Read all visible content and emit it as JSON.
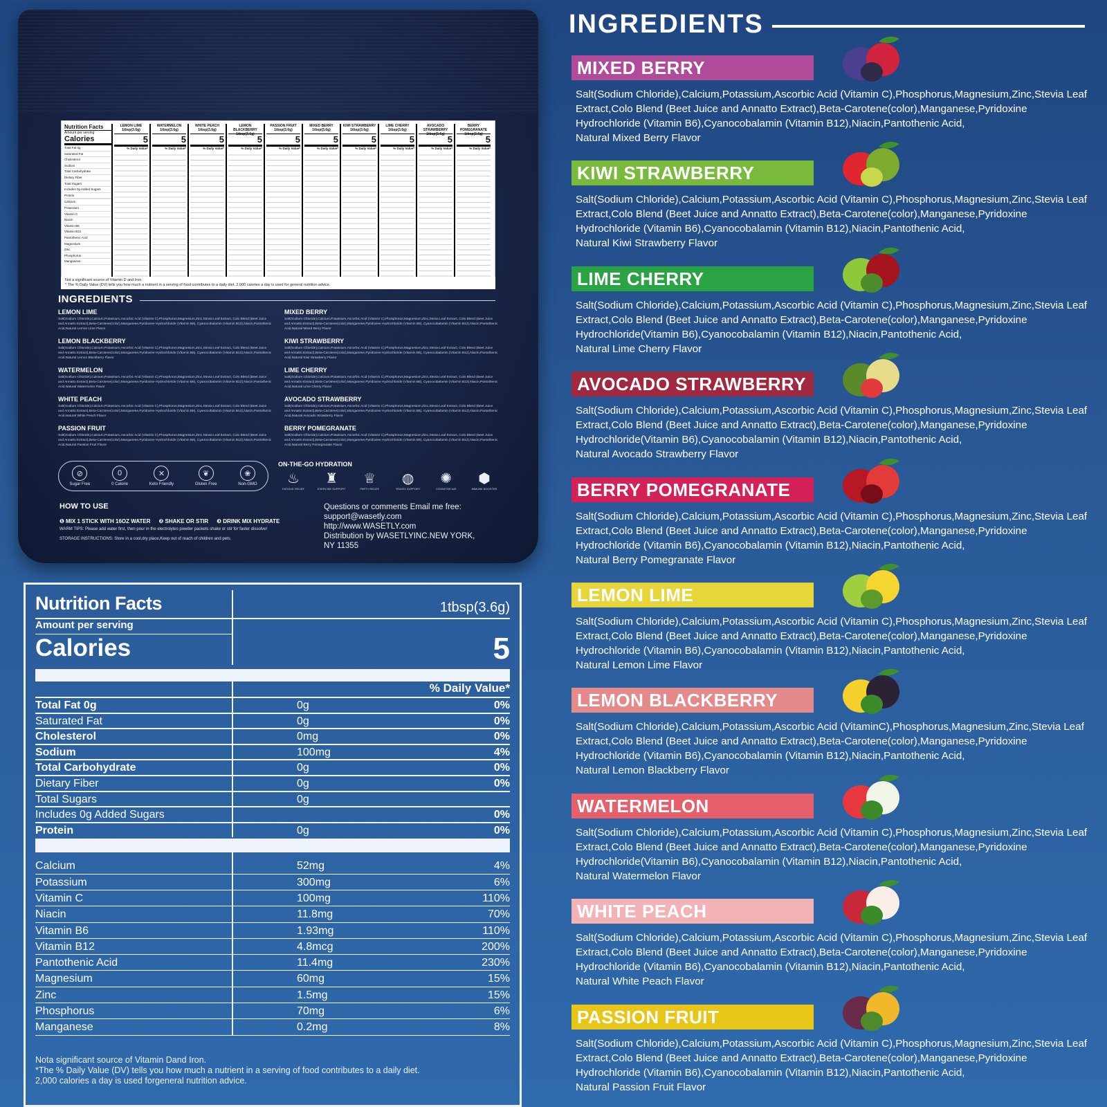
{
  "package": {
    "mini_table": {
      "title": "Nutrition Facts",
      "amount": "Amount per serving",
      "calories": "Calories",
      "row_labels": [
        "Total Fat 0g",
        "Saturated Fat",
        "Cholesterol",
        "Sodium",
        "Total Carbohydrate",
        "Dietary Fiber",
        "Total Sugars",
        "Includes 0g Added Sugars",
        "Protein",
        "",
        "Calcium",
        "Potassium",
        "Vitamin C",
        "Niacin",
        "Vitamin B6",
        "Vitamin B12",
        "Pantothenic Acid",
        "Magnesium",
        "Zinc",
        "Phosphorus",
        "Manganese"
      ],
      "columns": [
        {
          "name": "LEMON LIME",
          "serving": "1tbsp(3.6g)",
          "calories": "5"
        },
        {
          "name": "WATERMELON",
          "serving": "1tbsp(3.6g)",
          "calories": "5"
        },
        {
          "name": "WHITE PEACH",
          "serving": "1tbsp(3.6g)",
          "calories": "5"
        },
        {
          "name": "LEMON BLACKBERRY",
          "serving": "1tbsp(3.6g)",
          "calories": "5"
        },
        {
          "name": "PASSION FRUIT",
          "serving": "1tbsp(3.6g)",
          "calories": "5"
        },
        {
          "name": "MIXED BERRY",
          "serving": "1tbsp(3.6g)",
          "calories": "5"
        },
        {
          "name": "KIWI STRAWBERRY",
          "serving": "1tbsp(3.6g)",
          "calories": "5"
        },
        {
          "name": "LIME CHERRY",
          "serving": "1tbsp(3.6g)",
          "calories": "5"
        },
        {
          "name": "AVOCADO STRAWBERRY",
          "serving": "1tbsp(3.6g)",
          "calories": "5"
        },
        {
          "name": "BERRY POMEGRANATE",
          "serving": "1tbsp(3.6g)",
          "calories": "5"
        }
      ],
      "dv_label": "% Daily Value*",
      "footnote_1": "Not a significant source of Vitamin D and Iron.",
      "footnote_2": "* The % Daily Value (DV) tells you how much a nutrient in a serving of food contributes to a daily diet. 2,000 calories a day is used for general nutrition advice."
    },
    "ingredients_title": "INGREDIENTS",
    "ingredients_left": [
      {
        "name": "LEMON LIME",
        "text": "Salt(Sodium Chloride),Calcium,Potassium,Ascorbic Acid (Vitamin C),Phosphorus,Magnesium,Zinc,Stevia Leaf Extract, Colo Blend (Beet Juice and Annatto Extract),Beta-Carotene(color),Manganese,Pyridoxine Hydrochloride (Vitamin B6), Cyanocobalamin (Vitamin B12),Niacin,Pantothenic Acid,Natural Lemon Lime Flavor"
      },
      {
        "name": "LEMON BLACKBERRY",
        "text": "Salt(Sodium Chloride),Calcium,Potassium,Ascorbic Acid (Vitamin C),Phosphorus,Magnesium,Zinc,Stevia Leaf Extract, Colo Blend (Beet Juice and Annatto Extract),Beta-Carotene(color),Manganese,Pyridoxine Hydrochloride (Vitamin B6), Cyanocobalamin (Vitamin B12),Niacin,Pantothenic Acid,Natural Lemon Blackberry Flavor"
      },
      {
        "name": "WATERMELON",
        "text": "Salt(Sodium Chloride),Calcium,Potassium,Ascorbic Acid (Vitamin C),Phosphorus,Magnesium,Zinc,Stevia Leaf Extract, Colo Blend (Beet Juice and Annatto Extract),Beta-Carotene(color),Manganese,Pyridoxine Hydrochloride (Vitamin B6), Cyanocobalamin (Vitamin B12),Niacin,Pantothenic Acid,Natural Watermelon Flavor"
      },
      {
        "name": "WHITE PEACH",
        "text": "Salt(Sodium Chloride),Calcium,Potassium,Ascorbic Acid (Vitamin C),Phosphorus,Magnesium,Zinc,Stevia Leaf Extract, Colo Blend (Beet Juice and Annatto Extract),Beta-Carotene(color),Manganese,Pyridoxine Hydrochloride (Vitamin B6), Cyanocobalamin (Vitamin B12),Niacin,Pantothenic Acid,Natural White Peach Flavor"
      },
      {
        "name": "PASSION FRUIT",
        "text": "Salt(Sodium Chloride),Calcium,Potassium,Ascorbic Acid (Vitamin C),Phosphorus,Magnesium,Zinc,Stevia Leaf Extract, Colo Blend (Beet Juice and Annatto Extract),Beta-Carotene(color),Manganese,Pyridoxine Hydrochloride (Vitamin B6), Cyanocobalamin (Vitamin B12),Niacin,Pantothenic Acid,Natural Passion Fruit Flavor"
      }
    ],
    "ingredients_right": [
      {
        "name": "MIXED BERRY",
        "text": "Salt(Sodium Chloride),Calcium,Potassium,Ascorbic Acid (Vitamin C),Phosphorus,Magnesium,Zinc,Stevia Leaf Extract, Colo Blend (Beet Juice and Annatto Extract),Beta-Carotene(color),Manganese,Pyridoxine Hydrochloride (Vitamin B6), Cyanocobalamin (Vitamin B12),Niacin,Pantothenic Acid,Natural Mixed Berry Flavor"
      },
      {
        "name": "KIWI STRAWBERRY",
        "text": "Salt(Sodium Chloride),Calcium,Potassium,Ascorbic Acid (Vitamin C),Phosphorus,Magnesium,Zinc,Stevia Leaf Extract, Colo Blend (Beet Juice and Annatto Extract),Beta-Carotene(color),Manganese,Pyridoxine Hydrochloride (Vitamin B6), Cyanocobalamin (Vitamin B12),Niacin,Pantothenic Acid,Natural Kiwi Strawberry Flavor"
      },
      {
        "name": "LIME CHERRY",
        "text": "Salt(Sodium Chloride),Calcium,Potassium,Ascorbic Acid (Vitamin C),Phosphorus,Magnesium,Zinc,Stevia Leaf Extract, Colo Blend (Beet Juice and Annatto Extract),Beta-Carotene(color),Manganese,Pyridoxine Hydrochloride (Vitamin B6), Cyanocobalamin (Vitamin B12),Niacin,Pantothenic Acid,Natural Lime Cherry Flavor"
      },
      {
        "name": "AVOCADO STRAWBERRY",
        "text": "Salt(Sodium Chloride),Calcium,Potassium,Ascorbic Acid (Vitamin C),Phosphorus,Magnesium,Zinc,Stevia Leaf Extract, Colo Blend (Beet Juice and Annatto Extract),Beta-Carotene(color),Manganese,Pyridoxine Hydrochloride (Vitamin B6), Cyanocobalamin (Vitamin B12),Niacin,Pantothenic Acid,Natural Avocado Strawberry Flavor"
      },
      {
        "name": "BERRY POMEGRANATE",
        "text": "Salt(Sodium Chloride),Calcium,Potassium,Ascorbic Acid (Vitamin C),Phosphorus,Magnesium,Zinc,Stevia Leaf Extract, Colo Blend (Beet Juice and Annatto Extract),Beta-Carotene(color),Manganese,Pyridoxine Hydrochloride (Vitamin B6), Cyanocobalamin (Vitamin B12),Niacin,Pantothenic Acid,Natural Berry Pomegranate Flavor"
      }
    ],
    "badges": [
      {
        "label": "Sugar Free",
        "icon": "sugar-free-icon",
        "glyph": "⊘"
      },
      {
        "label": "0 Calorie",
        "icon": "zero-calorie-icon",
        "glyph": "0"
      },
      {
        "label": "Keto Friendly",
        "icon": "keto-icon",
        "glyph": "✕"
      },
      {
        "label": "Gluten Free",
        "icon": "gluten-free-icon",
        "glyph": "❦"
      },
      {
        "label": "Non-GMO",
        "icon": "non-gmo-icon",
        "glyph": "❀"
      }
    ],
    "otg_title": "ON-THE-GO HYDRATION",
    "otg_items": [
      {
        "label": "FATIGUE RELIEF",
        "icon": "fatigue-relief-icon",
        "glyph": "♨"
      },
      {
        "label": "EXERCISE SUPPORT",
        "icon": "exercise-icon",
        "glyph": "♜"
      },
      {
        "label": "PARTY RELIEF",
        "icon": "party-icon",
        "glyph": "♕"
      },
      {
        "label": "TRAVEL SUPPORT",
        "icon": "travel-icon",
        "glyph": "◍"
      },
      {
        "label": "COGNITIVE AID",
        "icon": "cognitive-icon",
        "glyph": "✺"
      },
      {
        "label": "IMMUNE BOOSTER",
        "icon": "immune-icon",
        "glyph": "⬢"
      }
    ],
    "how_to_use_title": "HOW TO USE",
    "steps": [
      "❶ MIX 1 STICK WITH 16OZ WATER",
      "❷ SHAKE OR STIR",
      "❸ DRINK MIX HYDRATE"
    ],
    "warm_tips": "WARM TIPS: Please add water first, then pour in the electrolytes powder packets shake or stir for faster dissolve!",
    "storage": "STORAGE INSTRUCTIONS: Store in a cool,dry place,Keep out of reach of children and pets.",
    "contact": [
      "Questions or comments Email me free:",
      "support@wasetly.com",
      "http://www.WASETLY.com",
      "Distribution by WASETLYINC.NEW YORK,",
      "NY 11355"
    ]
  },
  "nutrition": {
    "title": "Nutrition Facts",
    "serving": "1tbsp(3.6g)",
    "amount_per_serving": "Amount per serving",
    "calories_label": "Calories",
    "calories_value": "5",
    "dv_header": "% Daily Value*",
    "rows": [
      {
        "label": "Total Fat 0g",
        "amount": "0g",
        "dv": "0%",
        "bold": true
      },
      {
        "label": "Saturated Fat",
        "amount": "0g",
        "dv": "0%",
        "bold": false
      },
      {
        "label": "Cholesterol",
        "amount": "0mg",
        "dv": "0%",
        "bold": true
      },
      {
        "label": "Sodium",
        "amount": "100mg",
        "dv": "4%",
        "bold": true
      },
      {
        "label": "Total Carbohydrate",
        "amount": "0g",
        "dv": "0%",
        "bold": true
      },
      {
        "label": "Dietary Fiber",
        "amount": "0g",
        "dv": "0%",
        "bold": false
      },
      {
        "label": "Total Sugars",
        "amount": "0g",
        "dv": "",
        "bold": false
      },
      {
        "label": "Includes 0g Added Sugars",
        "amount": "",
        "dv": "0%",
        "bold": false
      },
      {
        "label": "Protein",
        "amount": "0g",
        "dv": "0%",
        "bold": true
      }
    ],
    "vitamins": [
      {
        "label": "Calcium",
        "amount": "52mg",
        "dv": "4%"
      },
      {
        "label": "Potassium",
        "amount": "300mg",
        "dv": "6%"
      },
      {
        "label": "Vitamin C",
        "amount": "100mg",
        "dv": "110%"
      },
      {
        "label": "Niacin",
        "amount": "11.8mg",
        "dv": "70%"
      },
      {
        "label": "Vitamin B6",
        "amount": "1.93mg",
        "dv": "110%"
      },
      {
        "label": "Vitamin B12",
        "amount": "4.8mcg",
        "dv": "200%"
      },
      {
        "label": "Pantothenic Acid",
        "amount": "11.4mg",
        "dv": "230%"
      },
      {
        "label": "Magnesium",
        "amount": "60mg",
        "dv": "15%"
      },
      {
        "label": "Zinc",
        "amount": "1.5mg",
        "dv": "15%"
      },
      {
        "label": "Phosphorus",
        "amount": "70mg",
        "dv": "6%"
      },
      {
        "label": "Manganese",
        "amount": "0.2mg",
        "dv": "8%"
      }
    ],
    "footnote": [
      "Nota significant source of Vitamin Dand Iron.",
      "*The % Daily Value (DV) tells you how much a nutrient in a serving of food contributes to a daily diet.",
      " 2,000 calories a day is used forgeneral nutrition advice."
    ]
  },
  "ingredients": {
    "title": "INGREDIENTS",
    "flavors": [
      {
        "name": "MIXED BERRY",
        "color": "#b04b9a",
        "icon": "mixed-berry-icon",
        "fruit_colors": [
          "#4c3f8f",
          "#d1233d",
          "#2f2a4a"
        ],
        "text": "Salt(Sodium Chloride),Calcium,Potassium,Ascorbic Acid (Vitamin C),Phosphorus,Magnesium,Zinc,Stevia Leaf Extract,Colo Blend (Beet Juice and Annatto Extract),Beta-Carotene(color),Manganese,Pyridoxine Hydrochloride (Vitamin B6),Cyanocobalamin (Vitamin B12),Niacin,Pantothenic Acid,",
        "flavor": "Natural Mixed Berry Flavor"
      },
      {
        "name": "KIWI STRAWBERRY",
        "color": "#79b93c",
        "icon": "kiwi-strawberry-icon",
        "fruit_colors": [
          "#e0262e",
          "#7cab2f",
          "#c7d94a"
        ],
        "text": "Salt(Sodium Chloride),Calcium,Potassium,Ascorbic Acid (Vitamin C),Phosphorus,Magnesium,Zinc,Stevia Leaf Extract,Colo Blend (Beet Juice and Annatto Extract),Beta-Carotene(color),Manganese,Pyridoxine Hydrochloride (Vitamin B6),Cyanocobalamin (Vitamin B12),Niacin,Pantothenic Acid,",
        "flavor": "Natural Kiwi Strawberry Flavor"
      },
      {
        "name": "LIME CHERRY",
        "color": "#2aa345",
        "icon": "lime-cherry-icon",
        "fruit_colors": [
          "#8fc93a",
          "#a6141e",
          "#4e8b2a"
        ],
        "text": "Salt(Sodium Chloride),Calcium,Potassium,Ascorbic Acid (Vitamin C),Phosphorus,Magnesium,Zinc,Stevia Leaf Extract,Colo Blend (Beet Juice and Annatto Extract),Beta-Carotene(color),Manganese,Pyridoxine Hydrochloride(Vitamin B6),Cyanocobalamin (Vitamin B12),Niacin,Pantothenic Acid,",
        "flavor": "Natural Lime Cherry Flavor"
      },
      {
        "name": "AVOCADO STRAWBERRY",
        "color": "#a0293f",
        "icon": "avocado-strawberry-icon",
        "fruit_colors": [
          "#5a8a2a",
          "#e6dc8a",
          "#e23a3a"
        ],
        "text": "Salt(Sodium Chloride),Calcium,Potassium,Ascorbic Acid (Vitamin C),Phosphorus,Magnesium,Zinc,Stevia Leaf Extract,Colo Blend (Beet Juice and Annatto Extract),Beta-Carotene(color),Manganese,Pyridoxine Hydrochloride(Vitamin B6),Cyanocobalamin (Vitamin B12),Niacin,Pantothenic Acid,",
        "flavor": "Natural Avocado Strawberry Flavor"
      },
      {
        "name": "BERRY POMEGRANATE",
        "color": "#d42158",
        "icon": "berry-pomegranate-icon",
        "fruit_colors": [
          "#b81724",
          "#e33a3a",
          "#7a0e18"
        ],
        "text": "Salt(Sodium Chloride),Calcium,Potassium,Ascorbic Acid (Vitamin C),Phosphorus,Magnesium,Zinc,Stevia Leaf Extract,Colo Blend (Beet Juice and Annatto Extract),Beta-Carotene(color),Manganese,Pyridoxine Hydrochloride (Vitamin B6),Cyanocobalamin (Vitamin B12),Niacin,Pantothenic Acid,",
        "flavor": "Natural Berry Pomegranate Flavor"
      },
      {
        "name": "LEMON LIME",
        "color": "#e7d63a",
        "icon": "lemon-lime-icon",
        "fruit_colors": [
          "#9fcf3f",
          "#f5d630",
          "#5b9a2b"
        ],
        "text": "Salt(Sodium Chloride),Calcium,Potassium,Ascorbic Acid (Vitamin C),Phosphorus,Magnesium,Zinc,Stevia Leaf Extract,Colo Blend (Beet Juice and Annatto Extract),Beta-Carotene(color),Manganese,Pyridoxine Hydrochloride (Vitamin B6),Cyanocobalamin (Vitamin B12),Niacin,Pantothenic Acid,",
        "flavor": "Natural Lemon Lime Flavor"
      },
      {
        "name": "LEMON BLACKBERRY",
        "color": "#e48a8a",
        "icon": "lemon-blackberry-icon",
        "fruit_colors": [
          "#f4cf2e",
          "#2b2236",
          "#3d8a2a"
        ],
        "text": "Salt(Sodium Chloride),Calcium,Potassium,Ascorbic Acid (VitaminC),Phosphorus,Magnesium,Zinc,Stevia Leaf Extract,Colo Blend (Beet Juice and Annatto Extract),Beta-Carotene(color),Manganese,Pyridoxine Hydrochloride (Vitamin B6),Cyanocobalamin (Vitamin B12),Niacin,Pantothenic Acid,",
        "flavor": "Natural Lemon Blackberry Flavor"
      },
      {
        "name": "WATERMELON",
        "color": "#e5606a",
        "icon": "watermelon-icon",
        "fruit_colors": [
          "#e8383f",
          "#f1f5e8",
          "#3b8a2a"
        ],
        "text": "Salt(Sodium Chloride),Calcium,Potassium,Ascorbic Acid (Vitamin C),Phosphorus,Magnesium,Zinc,Stevia Leaf Extract,Colo Blend (Beet Juice and Annatto Extract),Beta-Carotene(color),Manganese,Pyridoxine Hydrochloride(Vitamin B6),Cyanocobalamin (Vitamin B12),Niacin,Pantothenic Acid,",
        "flavor": "Natural Watermelon Flavor"
      },
      {
        "name": "WHITE PEACH",
        "color": "#f2b2b6",
        "icon": "white-peach-icon",
        "fruit_colors": [
          "#c8283a",
          "#fbeee6",
          "#3b8a2a"
        ],
        "text": "Salt(Sodium Chloride),Calcium,Potassium,Ascorbic Acid (Vitamin C),Phosphorus,Magnesium,Zinc,Stevia Leaf Extract,Colo Blend (Beet Juice and Annatto Extract),Beta-Carotene(color),Manganese,Pyridoxine Hydrochloride (Vitamin B6),Cyanocobalamin (Vitamin B12),Niacin,Pantothenic Acid,",
        "flavor": "Natural White Peach Flavor"
      },
      {
        "name": "PASSION FRUIT",
        "color": "#e7c618",
        "icon": "passion-fruit-icon",
        "fruit_colors": [
          "#6a2a4a",
          "#f0b82a",
          "#4e8b2a"
        ],
        "text": "Salt(Sodium Chloride),Calcium,Potassium,Ascorbic Acid (Vitamin C),Phosphorus,Magnesium,Zinc,Stevia Leaf Extract,Colo Blend (Beet Juice and Annatto Extract),Beta-Carotene(color),Manganese,Pyridoxine Hydrochloride (Vitamin B6),Cyanocobalamin (Vitamin B12),Niacin,Pantothenic Acid,",
        "flavor": "Natural Passion Fruit Flavor"
      }
    ]
  }
}
